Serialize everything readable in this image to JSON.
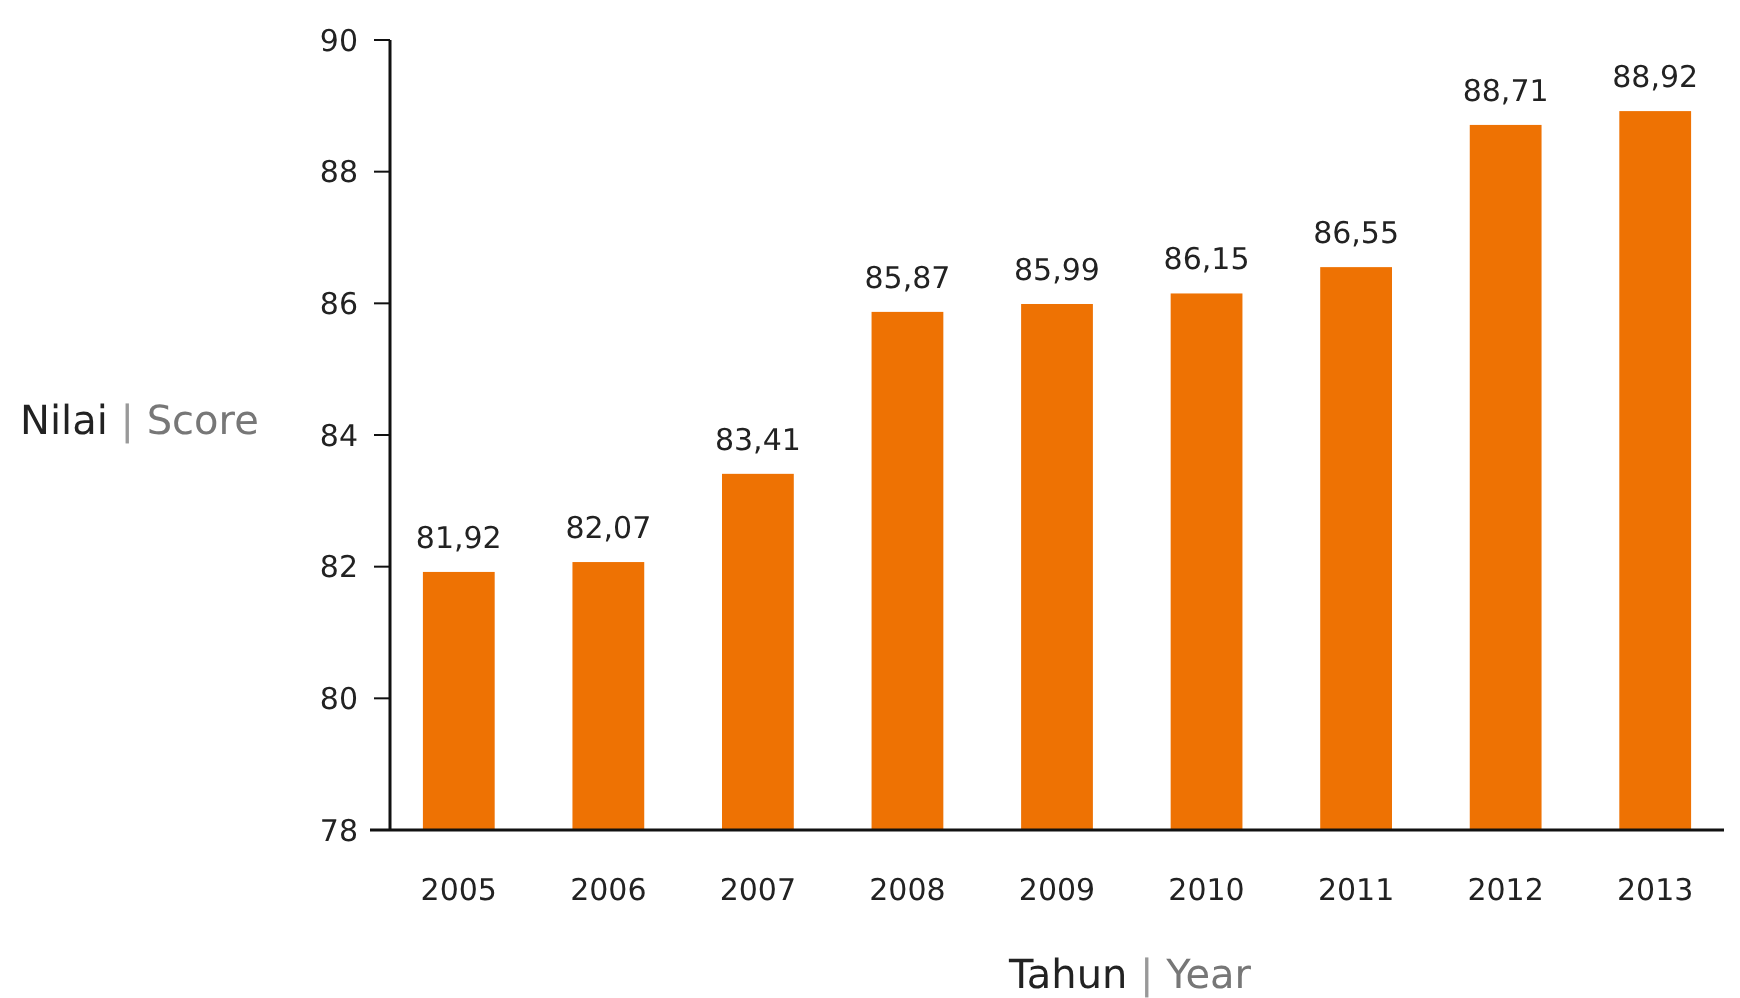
{
  "chart_data": {
    "type": "bar",
    "xlabel": "Tahun | Year",
    "ylabel": "Nilai | Score",
    "categories": [
      "2005",
      "2006",
      "2007",
      "2008",
      "2009",
      "2010",
      "2011",
      "2012",
      "2013"
    ],
    "values": [
      81.92,
      82.07,
      83.41,
      85.87,
      85.99,
      86.15,
      86.55,
      88.71,
      88.92
    ],
    "value_labels": [
      "81,92",
      "82,07",
      "83,41",
      "85,87",
      "85,99",
      "86,15",
      "86,55",
      "88,71",
      "88,92"
    ],
    "color": "#ee7203",
    "ylim": [
      78,
      90
    ],
    "yticks": [
      78,
      80,
      82,
      84,
      86,
      88,
      90
    ],
    "grid": false
  }
}
